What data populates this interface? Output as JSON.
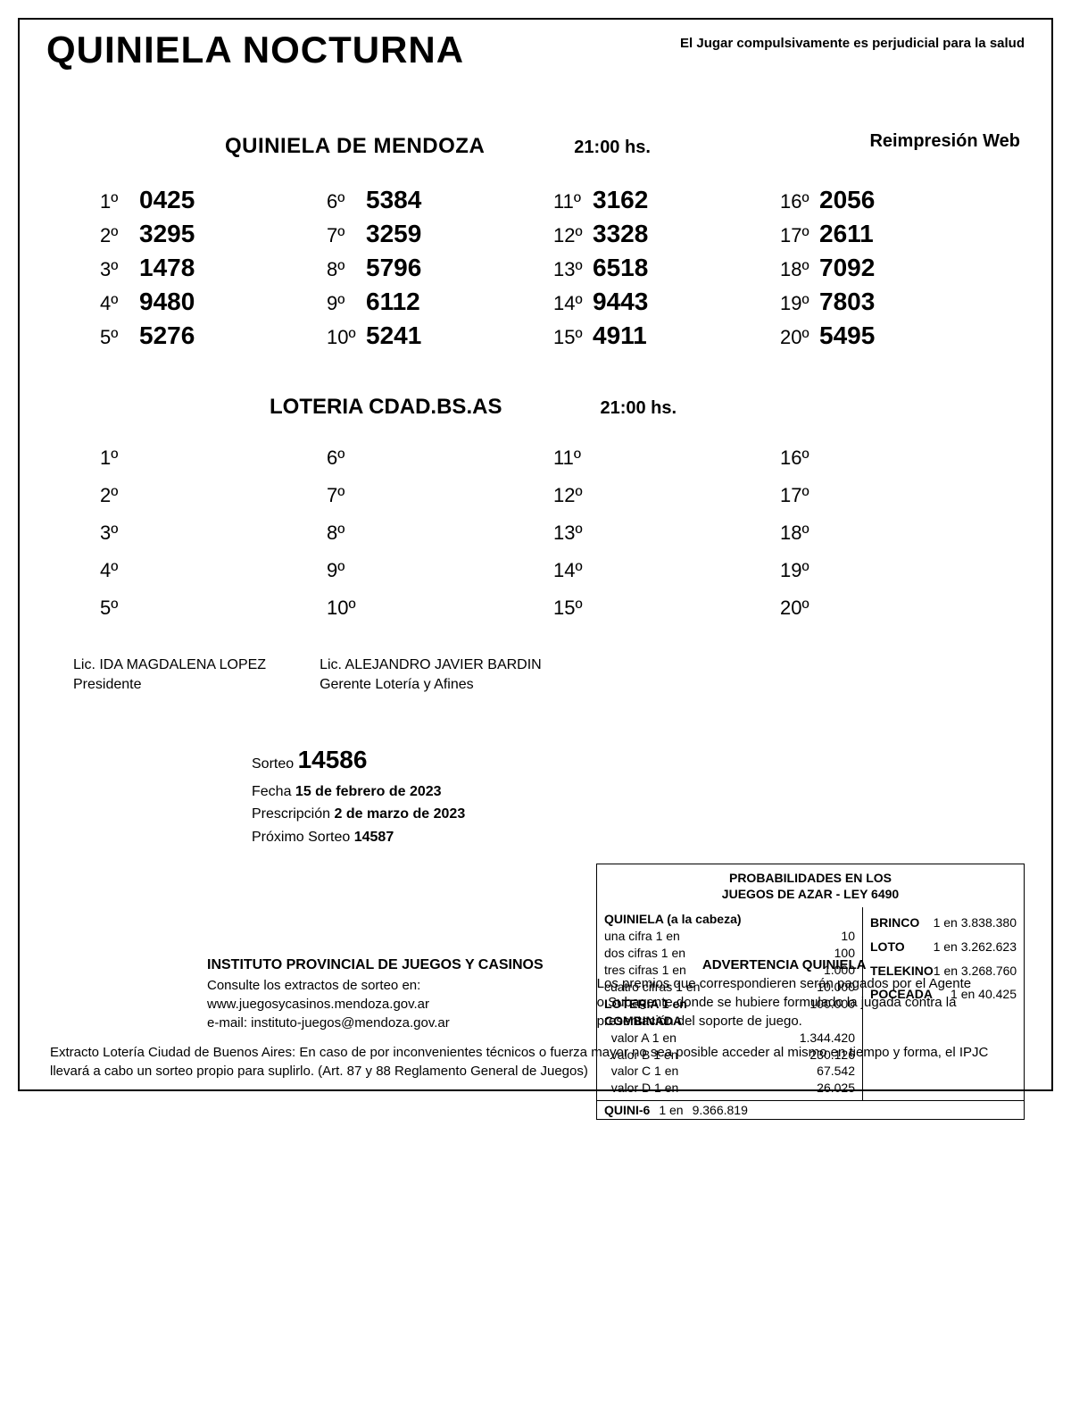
{
  "header": {
    "title": "QUINIELA NOCTURNA",
    "warning": "El Jugar compulsivamente es perjudicial para la salud",
    "reprint": "Reimpresión Web"
  },
  "lottery1": {
    "title": "QUINIELA  DE MENDOZA",
    "time": "21:00 hs.",
    "results": [
      {
        "pos": "1º",
        "num": "0425"
      },
      {
        "pos": "2º",
        "num": "3295"
      },
      {
        "pos": "3º",
        "num": "1478"
      },
      {
        "pos": "4º",
        "num": "9480"
      },
      {
        "pos": "5º",
        "num": "5276"
      },
      {
        "pos": "6º",
        "num": "5384"
      },
      {
        "pos": "7º",
        "num": "3259"
      },
      {
        "pos": "8º",
        "num": "5796"
      },
      {
        "pos": "9º",
        "num": "6112"
      },
      {
        "pos": "10º",
        "num": "5241"
      },
      {
        "pos": "11º",
        "num": "3162"
      },
      {
        "pos": "12º",
        "num": "3328"
      },
      {
        "pos": "13º",
        "num": "6518"
      },
      {
        "pos": "14º",
        "num": "9443"
      },
      {
        "pos": "15º",
        "num": "4911"
      },
      {
        "pos": "16º",
        "num": "2056"
      },
      {
        "pos": "17º",
        "num": "2611"
      },
      {
        "pos": "18º",
        "num": "7092"
      },
      {
        "pos": "19º",
        "num": "7803"
      },
      {
        "pos": "20º",
        "num": "5495"
      }
    ]
  },
  "lottery2": {
    "title": "LOTERIA CDAD.BS.AS",
    "time": "21:00 hs.",
    "positions": [
      "1º",
      "2º",
      "3º",
      "4º",
      "5º",
      "6º",
      "7º",
      "8º",
      "9º",
      "10º",
      "11º",
      "12º",
      "13º",
      "14º",
      "15º",
      "16º",
      "17º",
      "18º",
      "19º",
      "20º"
    ]
  },
  "signatures": [
    {
      "name": "Lic. IDA MAGDALENA LOPEZ",
      "role": "Presidente"
    },
    {
      "name": "Lic. ALEJANDRO JAVIER BARDIN",
      "role": "Gerente Lotería y Afines"
    }
  ],
  "draw": {
    "label": "Sorteo",
    "number": "14586",
    "date_label": "Fecha",
    "date": "15 de febrero de 2023",
    "presc_label": "Prescripción",
    "presc": "2 de marzo de 2023",
    "next_label": "Próximo Sorteo",
    "next": "14587"
  },
  "prob": {
    "title1": "PROBABILIDADES EN LOS",
    "title2": "JUEGOS DE AZAR - LEY 6490",
    "quiniela_hdr": "QUINIELA (a la cabeza)",
    "q_rows": [
      {
        "lbl": "una cifra  1 en",
        "val": "10"
      },
      {
        "lbl": "dos cifras 1 en",
        "val": "100"
      },
      {
        "lbl": "tres cifras 1 en",
        "val": "1.000"
      },
      {
        "lbl": "cuatro cifras 1 en",
        "val": "10.000"
      }
    ],
    "loteria": {
      "lbl": "LOTERIA  1 en",
      "val": "100.000"
    },
    "combinada_hdr": "COMBINADA",
    "c_rows": [
      {
        "lbl": "valor A 1 en",
        "val": "1.344.420"
      },
      {
        "lbl": "valor B 1 en",
        "val": "230.126"
      },
      {
        "lbl": "valor C 1 en",
        "val": "67.542"
      },
      {
        "lbl": "valor D 1 en",
        "val": "26.025"
      }
    ],
    "quini6": {
      "lbl": "QUINI-6",
      "mid": "1 en",
      "val": "9.366.819"
    },
    "right": [
      {
        "lbl": "BRINCO",
        "val": "1 en 3.838.380"
      },
      {
        "lbl": "LOTO",
        "val": "1 en 3.262.623"
      },
      {
        "lbl": "TELEKINO",
        "val": "1 en 3.268.760"
      },
      {
        "lbl": "POCEADA",
        "val": "1 en 40.425"
      }
    ]
  },
  "institute": {
    "hd": "INSTITUTO PROVINCIAL DE JUEGOS Y CASINOS",
    "l1": "Consulte los extractos de sorteo en:",
    "l2": "www.juegosycasinos.mendoza.gov.ar",
    "l3": "e-mail:  instituto-juegos@mendoza.gov.ar"
  },
  "adv": {
    "hd": "ADVERTENCIA QUINIELA",
    "body": "Los premios que correspondieren serán pagados por el Agente o Subagente donde se hubiere formulado la jugada contra la presentación del soporte de juego."
  },
  "footnote": "Extracto Lotería Ciudad de Buenos Aires: En caso de por inconvenientes técnicos o fuerza mayor no sea posible acceder al mismo en tiempo y forma, el IPJC llevará a cabo un sorteo propio para suplirlo. (Art. 87 y 88 Reglamento General de Juegos)"
}
